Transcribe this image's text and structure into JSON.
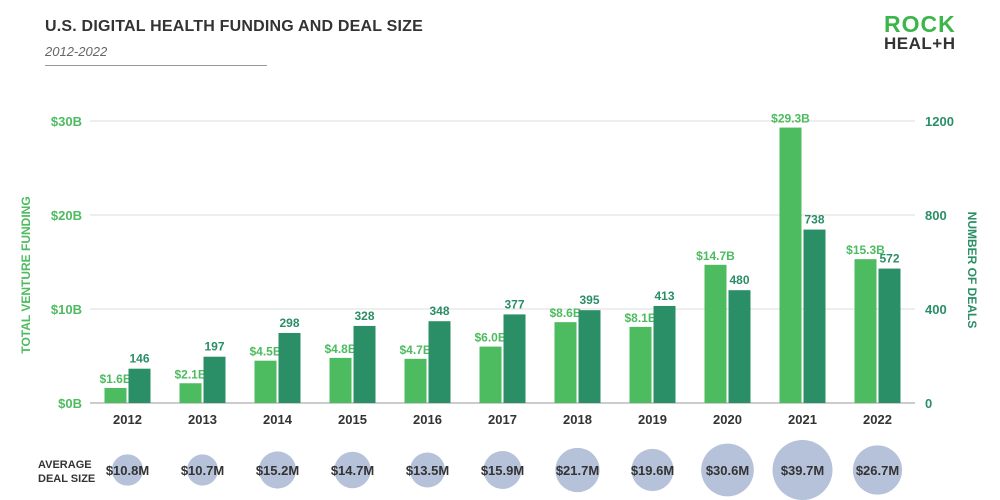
{
  "header": {
    "title": "U.S. DIGITAL HEALTH FUNDING AND DEAL SIZE",
    "subtitle": "2012-2022"
  },
  "logo": {
    "line1": "ROCK",
    "line2": "HEAL+H"
  },
  "colors": {
    "funding": "#4dbb5f",
    "deals": "#2a8e66",
    "bubble": "#b6c2d9",
    "left_axis": "#4dbb5f",
    "right_axis": "#2a8e66"
  },
  "chart_data": {
    "type": "bar",
    "title": "U.S. DIGITAL HEALTH FUNDING AND DEAL SIZE",
    "subtitle": "2012-2022",
    "categories": [
      "2012",
      "2013",
      "2014",
      "2015",
      "2016",
      "2017",
      "2018",
      "2019",
      "2020",
      "2021",
      "2022"
    ],
    "series": [
      {
        "name": "TOTAL VENTURE FUNDING",
        "axis": "left",
        "values": [
          1.6,
          2.1,
          4.5,
          4.8,
          4.7,
          6.0,
          8.6,
          8.1,
          14.7,
          29.3,
          15.3
        ],
        "labels": [
          "$1.6B",
          "$2.1B",
          "$4.5B",
          "$4.8B",
          "$4.7B",
          "$6.0B",
          "$8.6B",
          "$8.1B",
          "$14.7B",
          "$29.3B",
          "$15.3B"
        ]
      },
      {
        "name": "NUMBER OF DEALS",
        "axis": "right",
        "values": [
          146,
          197,
          298,
          328,
          348,
          377,
          395,
          413,
          480,
          738,
          572
        ],
        "labels": [
          "146",
          "197",
          "298",
          "328",
          "348",
          "377",
          "395",
          "413",
          "480",
          "738",
          "572"
        ]
      }
    ],
    "left_axis": {
      "label": "TOTAL VENTURE FUNDING",
      "range": [
        0,
        30
      ],
      "ticks": [
        0,
        10,
        20,
        30
      ],
      "tick_labels": [
        "$0B",
        "$10B",
        "$20B",
        "$30B"
      ]
    },
    "right_axis": {
      "label": "NUMBER OF DEALS",
      "range": [
        0,
        1200
      ],
      "ticks": [
        0,
        400,
        800,
        1200
      ],
      "tick_labels": [
        "0",
        "400",
        "800",
        "1200"
      ]
    },
    "grid": true,
    "average_deal_size": {
      "label_line1": "AVERAGE",
      "label_line2": "DEAL SIZE",
      "values": [
        10.8,
        10.7,
        15.2,
        14.7,
        13.5,
        15.9,
        21.7,
        19.6,
        30.6,
        39.7,
        26.7
      ],
      "labels": [
        "$10.8M",
        "$10.7M",
        "$15.2M",
        "$14.7M",
        "$13.5M",
        "$15.9M",
        "$21.7M",
        "$19.6M",
        "$30.6M",
        "$39.7M",
        "$26.7M"
      ]
    }
  }
}
